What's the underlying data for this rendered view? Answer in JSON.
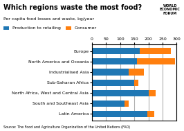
{
  "chart_data": {
    "type": "bar",
    "orientation": "horizontal",
    "stacked": true,
    "title": "Which regions waste the most food?",
    "subtitle": "Per capita food losses and waste, kg/year",
    "source": "Source: The Food and Agriculture Organization of the United Nations (FAO)",
    "annotations": [
      "WORLD\nECONOMIC\nFORUM"
    ],
    "categories": [
      "Europe",
      "North America and Oceania",
      "Industrialised Asia",
      "Sub-Saharan Africa",
      "North Africa, West and Central Asia",
      "South and Southeast Asia",
      "Latin America"
    ],
    "series": [
      {
        "name": "Production to retailing",
        "values": [
          170,
          160,
          130,
          150,
          200,
          115,
          195
        ]
      },
      {
        "name": "Consumer",
        "values": [
          110,
          135,
          55,
          15,
          25,
          15,
          25
        ]
      }
    ],
    "xlim": [
      0,
      300
    ],
    "xticks": [
      0,
      50,
      100,
      150,
      200,
      250,
      300
    ],
    "grid": true,
    "legend": "upper left"
  }
}
